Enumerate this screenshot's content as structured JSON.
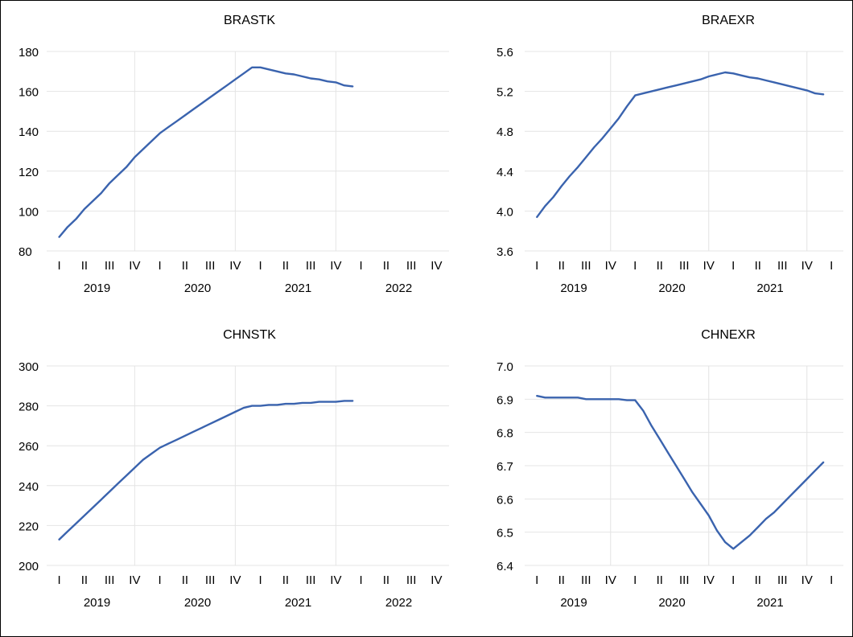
{
  "chart_data": [
    {
      "type": "line",
      "title": "BRASTK",
      "xlabel": "",
      "ylabel": "",
      "ylim": [
        80,
        180
      ],
      "yticks": [
        "80",
        "100",
        "120",
        "140",
        "160",
        "180"
      ],
      "xlim": [
        0,
        16
      ],
      "quarter_labels": [
        "I",
        "II",
        "III",
        "IV",
        "I",
        "II",
        "III",
        "IV",
        "I",
        "II",
        "III",
        "IV",
        "I",
        "II",
        "III",
        "IV"
      ],
      "year_labels": [
        "2019",
        "2020",
        "2021",
        "2022"
      ],
      "grid": true,
      "series": [
        {
          "color": "#3a63ae",
          "x": [
            0.0,
            0.333,
            0.667,
            1.0,
            1.333,
            1.667,
            2.0,
            2.333,
            2.667,
            3.0,
            3.333,
            3.667,
            4.0,
            4.333,
            4.667,
            5.0,
            5.333,
            5.667,
            6.0,
            6.333,
            6.667,
            7.0,
            7.333,
            7.667,
            8.0,
            8.333,
            8.667,
            9.0,
            9.333,
            9.667,
            10.0,
            10.333,
            10.667,
            11.0,
            11.333,
            11.667
          ],
          "values": [
            87,
            92,
            96,
            101,
            105,
            109,
            114,
            118,
            122,
            127,
            131,
            135,
            139,
            142,
            145,
            148,
            151,
            154,
            157,
            160,
            163,
            166,
            169,
            172,
            172,
            171,
            170,
            169,
            168.5,
            167.5,
            166.5,
            166,
            165,
            164.5,
            163,
            162.5
          ]
        }
      ]
    },
    {
      "type": "line",
      "title": "BRAEXR",
      "xlabel": "",
      "ylabel": "",
      "ylim": [
        3.6,
        5.6
      ],
      "yticks": [
        "3.6",
        "4.0",
        "4.4",
        "4.8",
        "5.2",
        "5.6"
      ],
      "xlim": [
        0,
        13
      ],
      "quarter_labels": [
        "I",
        "II",
        "III",
        "IV",
        "I",
        "II",
        "III",
        "IV",
        "I",
        "II",
        "III",
        "IV",
        "I"
      ],
      "year_labels": [
        "2019",
        "2020",
        "2021"
      ],
      "grid": true,
      "series": [
        {
          "color": "#3a63ae",
          "x": [
            0.0,
            0.333,
            0.667,
            1.0,
            1.333,
            1.667,
            2.0,
            2.333,
            2.667,
            3.0,
            3.333,
            3.667,
            4.0,
            4.333,
            4.667,
            5.0,
            5.333,
            5.667,
            6.0,
            6.333,
            6.667,
            7.0,
            7.333,
            7.667,
            8.0,
            8.333,
            8.667,
            9.0,
            9.333,
            9.667,
            10.0,
            10.333,
            10.667,
            11.0,
            11.333,
            11.667
          ],
          "values": [
            3.94,
            4.05,
            4.14,
            4.25,
            4.35,
            4.44,
            4.54,
            4.64,
            4.73,
            4.83,
            4.93,
            5.05,
            5.16,
            5.18,
            5.2,
            5.22,
            5.24,
            5.26,
            5.28,
            5.3,
            5.32,
            5.35,
            5.37,
            5.39,
            5.38,
            5.36,
            5.34,
            5.33,
            5.31,
            5.29,
            5.27,
            5.25,
            5.23,
            5.21,
            5.18,
            5.17
          ]
        }
      ]
    },
    {
      "type": "line",
      "title": "CHNSTK",
      "xlabel": "",
      "ylabel": "",
      "ylim": [
        200,
        300
      ],
      "yticks": [
        "200",
        "220",
        "240",
        "260",
        "280",
        "300"
      ],
      "xlim": [
        0,
        16
      ],
      "quarter_labels": [
        "I",
        "II",
        "III",
        "IV",
        "I",
        "II",
        "III",
        "IV",
        "I",
        "II",
        "III",
        "IV",
        "I",
        "II",
        "III",
        "IV"
      ],
      "year_labels": [
        "2019",
        "2020",
        "2021",
        "2022"
      ],
      "grid": true,
      "series": [
        {
          "color": "#3a63ae",
          "x": [
            0.0,
            0.333,
            0.667,
            1.0,
            1.333,
            1.667,
            2.0,
            2.333,
            2.667,
            3.0,
            3.333,
            3.667,
            4.0,
            4.333,
            4.667,
            5.0,
            5.333,
            5.667,
            6.0,
            6.333,
            6.667,
            7.0,
            7.333,
            7.667,
            8.0,
            8.333,
            8.667,
            9.0,
            9.333,
            9.667,
            10.0,
            10.333,
            10.667,
            11.0,
            11.333,
            11.667
          ],
          "values": [
            213,
            217,
            221,
            225,
            229,
            233,
            237,
            241,
            245,
            249,
            253,
            256,
            259,
            261,
            263,
            265,
            267,
            269,
            271,
            273,
            275,
            277,
            279,
            280,
            280,
            280.5,
            280.5,
            281,
            281,
            281.5,
            281.5,
            282,
            282,
            282,
            282.5,
            282.5
          ]
        }
      ]
    },
    {
      "type": "line",
      "title": "CHNEXR",
      "xlabel": "",
      "ylabel": "",
      "ylim": [
        6.4,
        7.0
      ],
      "yticks": [
        "6.4",
        "6.5",
        "6.6",
        "6.7",
        "6.8",
        "6.9",
        "7.0"
      ],
      "xlim": [
        0,
        13
      ],
      "quarter_labels": [
        "I",
        "II",
        "III",
        "IV",
        "I",
        "II",
        "III",
        "IV",
        "I",
        "II",
        "III",
        "IV",
        "I"
      ],
      "year_labels": [
        "2019",
        "2020",
        "2021"
      ],
      "grid": true,
      "series": [
        {
          "color": "#3a63ae",
          "x": [
            0.0,
            0.333,
            0.667,
            1.0,
            1.333,
            1.667,
            2.0,
            2.333,
            2.667,
            3.0,
            3.333,
            3.667,
            4.0,
            4.333,
            4.667,
            5.0,
            5.333,
            5.667,
            6.0,
            6.333,
            6.667,
            7.0,
            7.333,
            7.667,
            8.0,
            8.333,
            8.667,
            9.0,
            9.333,
            9.667,
            10.0,
            10.333,
            10.667,
            11.0,
            11.333,
            11.667
          ],
          "values": [
            6.91,
            6.905,
            6.905,
            6.905,
            6.905,
            6.905,
            6.9,
            6.9,
            6.9,
            6.9,
            6.9,
            6.897,
            6.897,
            6.865,
            6.82,
            6.78,
            6.74,
            6.7,
            6.66,
            6.62,
            6.585,
            6.55,
            6.505,
            6.47,
            6.45,
            6.47,
            6.49,
            6.515,
            6.54,
            6.56,
            6.585,
            6.61,
            6.635,
            6.66,
            6.685,
            6.71
          ]
        }
      ]
    }
  ]
}
